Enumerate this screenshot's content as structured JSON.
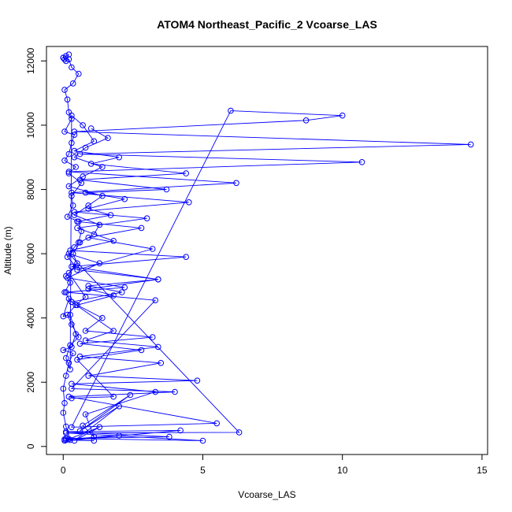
{
  "chart_data": {
    "type": "line",
    "title": "ATOM4 Northeast_Pacific_2 Vcoarse_LAS",
    "xlabel": "Vcoarse_LAS",
    "ylabel": "Altitude (m)",
    "xlim": [
      -0.6,
      15.2
    ],
    "ylim": [
      -250,
      12450
    ],
    "xticks": [
      0,
      5,
      10,
      15
    ],
    "yticks": [
      0,
      2000,
      4000,
      6000,
      8000,
      10000,
      12000
    ],
    "grid": false,
    "legend": "none",
    "color": "#0000ff",
    "series": [
      {
        "x": [
          0.25,
          0.1,
          0.0,
          0.05,
          0.0,
          0.1,
          0.2,
          0.35,
          0.0,
          0.3,
          0.45,
          0.25,
          0.0,
          0.2,
          0.3,
          0.05,
          0.25,
          0.1,
          0.45,
          0.15,
          0.4,
          0.55,
          0.65,
          0.55,
          0.15,
          0.35,
          0.3,
          0.65,
          0.2,
          0.45,
          0.05,
          0.2,
          0.3,
          0.4,
          0.05,
          0.3,
          0.2,
          0.15,
          0.05,
          0.35,
          0.55,
          0.3,
          0.2,
          0.0,
          0.2,
          0.1,
          0.0,
          0.05,
          0.1
        ],
        "y": [
          200,
          620,
          1050,
          1350,
          1800,
          2200,
          2600,
          2900,
          3000,
          3100,
          3500,
          4100,
          4050,
          4600,
          4500,
          4800,
          5100,
          5300,
          5600,
          5900,
          6200,
          6350,
          6700,
          7000,
          7150,
          7500,
          7800,
          8200,
          8500,
          8700,
          8900,
          9100,
          9450,
          9700,
          9800,
          10200,
          10400,
          10800,
          11100,
          11300,
          11600,
          11800,
          12050,
          12100,
          12200,
          12150,
          12100,
          12050,
          12000
        ]
      },
      {
        "x": [
          0.2,
          1.3,
          0.4,
          2.0,
          0.6,
          2.4,
          0.7,
          1.1,
          0.8,
          3.3,
          0.3,
          4.8,
          0.9,
          3.5,
          0.6,
          3.4,
          0.8,
          1.8,
          0.3,
          2.1,
          0.9,
          3.4,
          0.3,
          4.4,
          0.25,
          1.8,
          0.5,
          3.0,
          0.4,
          4.5,
          0.3,
          6.2,
          0.2,
          10.7,
          0.6,
          14.6,
          0.4,
          8.7,
          10.0,
          6.0,
          0.3,
          5.5,
          0.2,
          4.0,
          0.3,
          3.3,
          0.1,
          2.2,
          0.15,
          1.3,
          0.2,
          6.3,
          0.1,
          5.0,
          0.1,
          3.8,
          0.1,
          4.2,
          0.05,
          2.0,
          0.05,
          1.1,
          0.1
        ],
        "y": [
          230,
          600,
          180,
          1250,
          480,
          1600,
          650,
          300,
          1000,
          1700,
          1950,
          2050,
          2200,
          2600,
          2800,
          3100,
          3300,
          3600,
          4500,
          4800,
          5000,
          5200,
          5600,
          5900,
          6100,
          6400,
          6800,
          7100,
          7300,
          7600,
          7900,
          8200,
          8550,
          8850,
          9100,
          9400,
          9800,
          10150,
          10300,
          10450,
          600,
          720,
          1550,
          1700,
          1800,
          4550,
          4800,
          4950,
          5250,
          5700,
          6000,
          440,
          420,
          180,
          250,
          300,
          460,
          500,
          180,
          340,
          220,
          180,
          200
        ]
      },
      {
        "x": [
          0.3,
          1.8,
          0.5,
          2.8,
          0.6,
          3.2,
          0.8,
          1.4,
          0.5,
          1.8,
          0.9,
          3.4,
          0.5,
          3.2,
          0.9,
          2.8,
          0.5,
          1.7,
          0.9,
          2.2,
          0.8,
          3.7,
          0.6,
          4.4,
          1.0,
          2.0,
          0.4,
          1.1,
          0.7,
          0.3,
          0.25,
          0.1,
          0.25,
          0.55,
          0.3,
          0.15,
          0.45,
          0.8,
          0.2,
          0.5,
          0.35,
          0.6,
          1.1,
          1.3,
          0.4,
          0.9,
          1.4,
          0.2,
          0.7,
          1.4,
          0.4,
          0.8,
          1.6,
          1.0
        ],
        "y": [
          1500,
          1550,
          2700,
          3000,
          3200,
          3400,
          3600,
          4000,
          4400,
          4700,
          4900,
          5200,
          5500,
          6150,
          6500,
          6800,
          7000,
          7200,
          7400,
          7700,
          7900,
          8000,
          8300,
          8500,
          8800,
          9000,
          9200,
          9500,
          10000,
          10300,
          2400,
          2750,
          3150,
          3400,
          3800,
          4100,
          4400,
          4650,
          5400,
          5700,
          6000,
          6350,
          6600,
          6900,
          7200,
          7500,
          7800,
          8100,
          8400,
          8700,
          9000,
          9300,
          9600,
          9900
        ]
      }
    ]
  }
}
